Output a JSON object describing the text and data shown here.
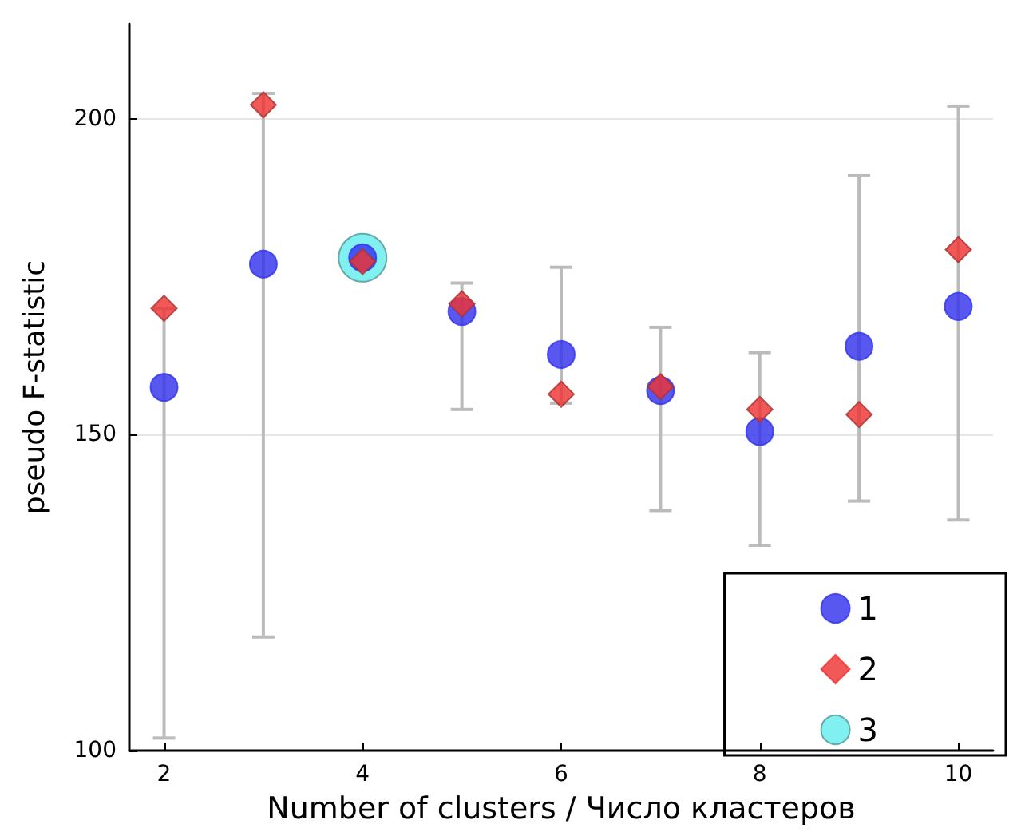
{
  "chart_data": {
    "type": "scatter",
    "xlabel": "Number of clusters / Число кластеров",
    "ylabel": "pseudo F-statistic",
    "x": [
      2,
      3,
      4,
      5,
      6,
      7,
      8,
      9,
      10
    ],
    "series": [
      {
        "name": "1",
        "color": "#3333ee",
        "marker": "circle",
        "values": [
          157.5,
          177,
          178,
          169.5,
          162.7,
          157,
          150.5,
          164,
          170.3
        ]
      },
      {
        "name": "2",
        "color": "#ee3333",
        "marker": "diamond",
        "values": [
          170,
          202.2,
          177.4,
          170.7,
          156.4,
          157.6,
          154,
          153.2,
          179.3
        ],
        "errors": [
          [
            102,
            170
          ],
          [
            118,
            204
          ],
          [
            176,
            180
          ],
          [
            154,
            174
          ],
          [
            155,
            176.5
          ],
          [
            138,
            167
          ],
          [
            132.5,
            163
          ],
          [
            139.5,
            191
          ],
          [
            136.5,
            202
          ]
        ]
      },
      {
        "name": "3",
        "color": "#80f0f0",
        "marker": "circle",
        "x": [
          4
        ],
        "values": [
          178
        ]
      }
    ],
    "xlim": [
      1.65,
      10.35
    ],
    "xticks": [
      2,
      4,
      6,
      8,
      10
    ],
    "ylim": [
      100,
      215
    ],
    "yticks": [
      100,
      150,
      200
    ],
    "grid": "y",
    "legend": "bottom right"
  }
}
